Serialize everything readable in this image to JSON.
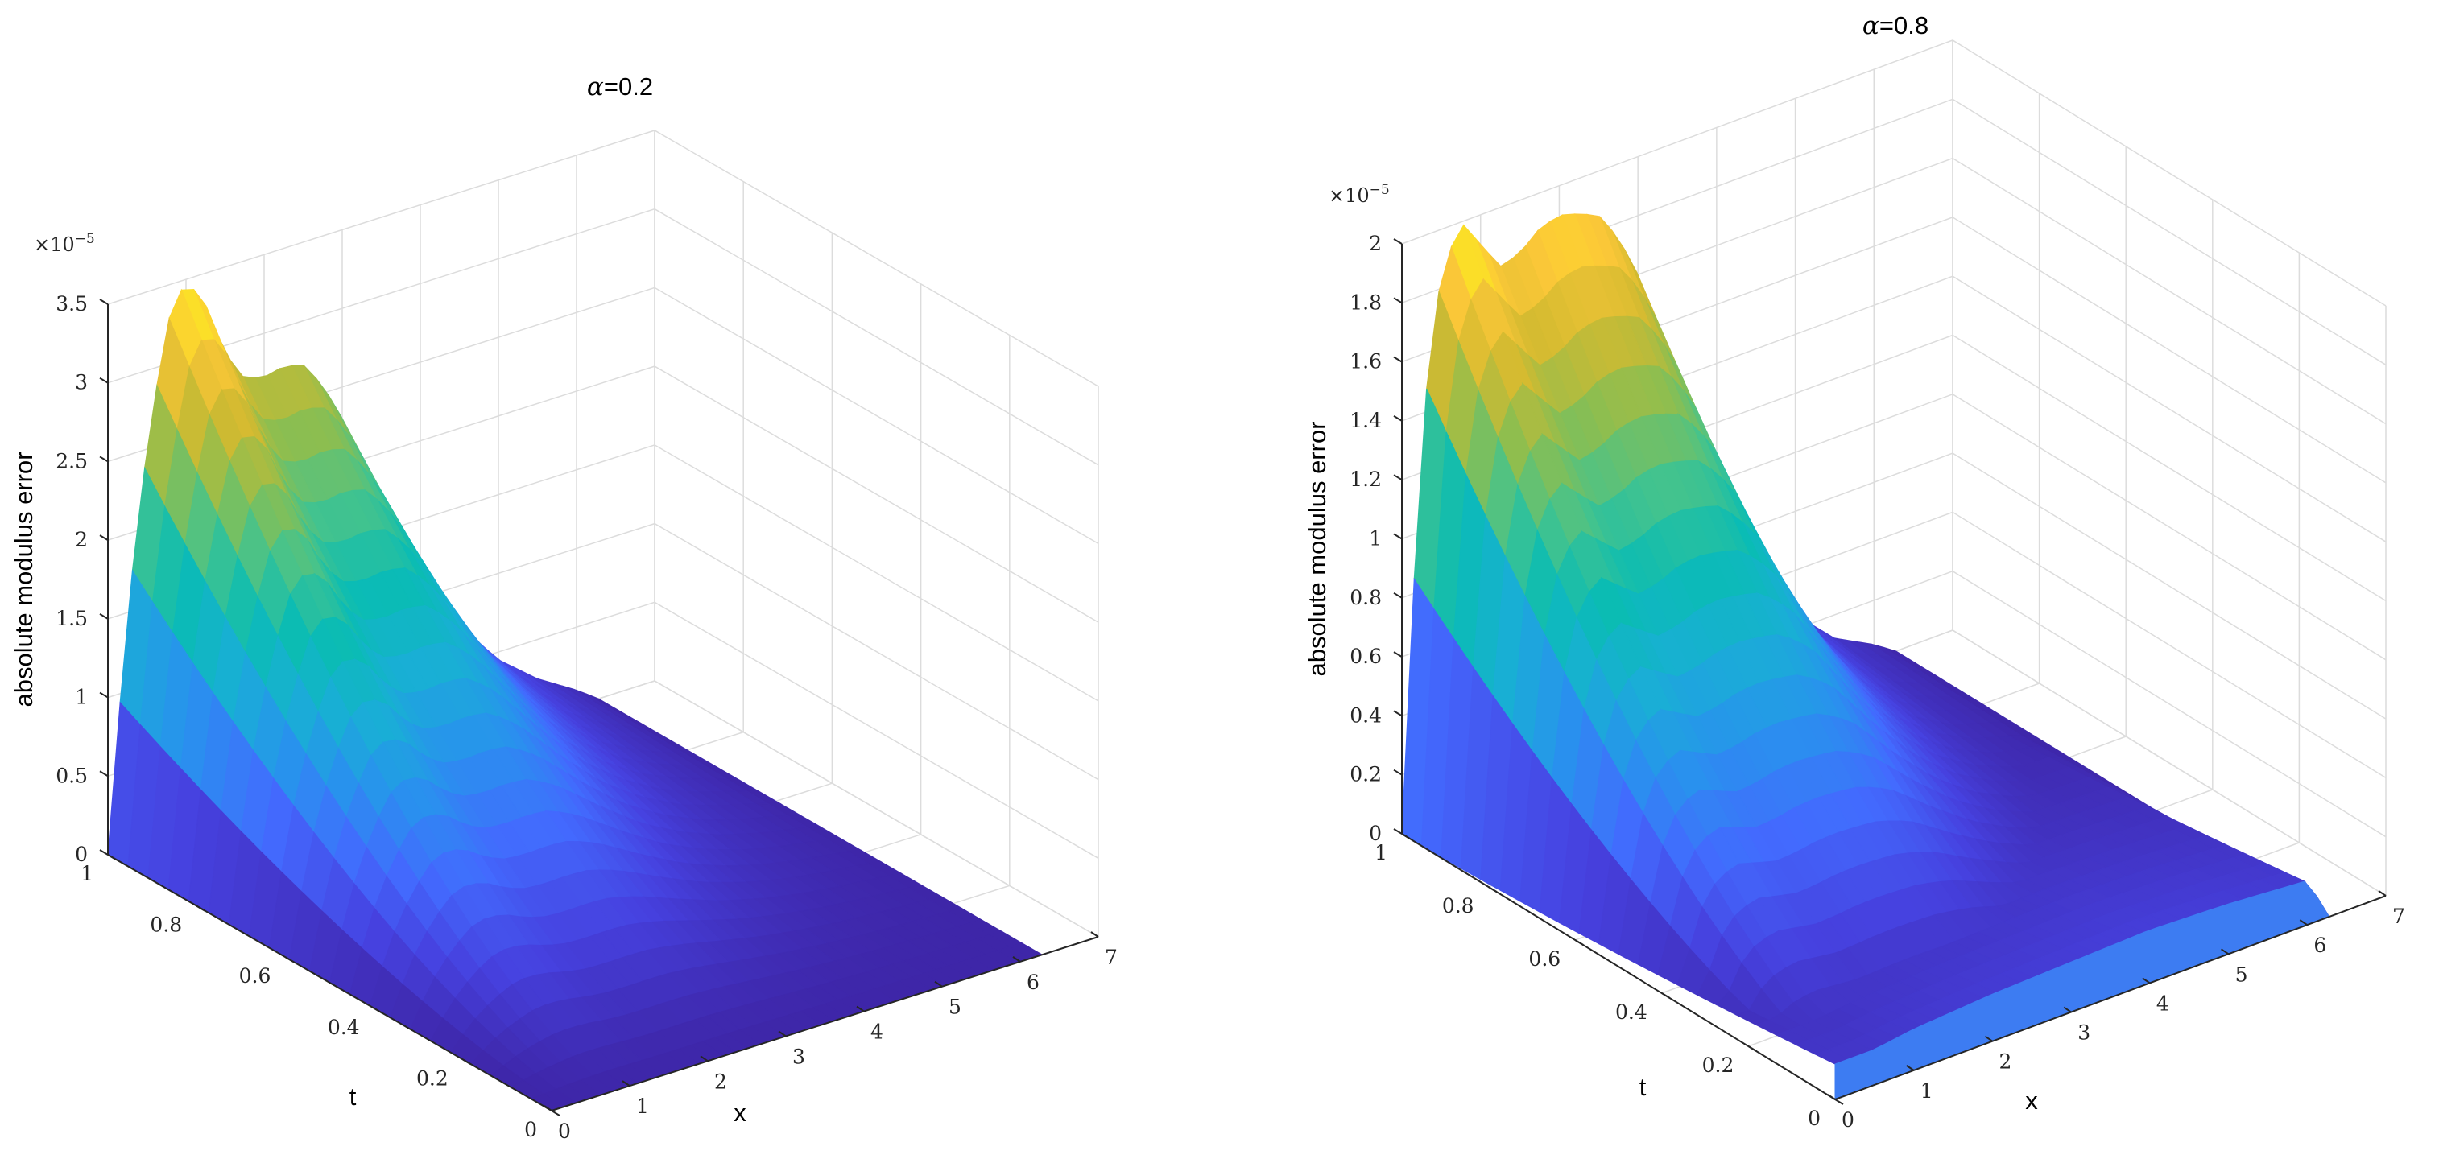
{
  "chart_data": [
    {
      "type": "surface",
      "title": "α=0.2",
      "title_parts": [
        "α",
        "=0.2"
      ],
      "xlabel": "x",
      "ylabel": "t",
      "zlabel": "absolute modulus error",
      "z_multiplier": "×10",
      "z_multiplier_exp": "−5",
      "xlim": [
        0,
        7
      ],
      "ylim": [
        0,
        1
      ],
      "zlim": [
        0,
        3.5
      ],
      "xticks": [
        "0",
        "1",
        "2",
        "3",
        "4",
        "5",
        "6",
        "7"
      ],
      "yticks": [
        "0",
        "0.2",
        "0.4",
        "0.6",
        "0.8",
        "1"
      ],
      "zticks": [
        "0",
        "0.5",
        "1",
        "1.5",
        "2",
        "2.5",
        "3",
        "3.5"
      ],
      "grid": true,
      "colormap": "parula",
      "peak_x": [
        0,
        0.25,
        0.5,
        0.75,
        1.0,
        1.25,
        1.5,
        1.75,
        2.0,
        2.25,
        2.5,
        2.75,
        3.0,
        3.5,
        4.0,
        4.5,
        5.0,
        5.5,
        6.0,
        6.28
      ],
      "peak_z": [
        0,
        1.5,
        2.5,
        3.25,
        3.5,
        3.3,
        2.95,
        2.75,
        2.72,
        2.75,
        2.72,
        2.55,
        2.3,
        1.7,
        1.15,
        0.75,
        0.45,
        0.25,
        0.1,
        0.0
      ]
    },
    {
      "type": "surface",
      "title": "α=0.8",
      "title_parts": [
        "α",
        "=0.8"
      ],
      "xlabel": "x",
      "ylabel": "t",
      "zlabel": "absolute modulus error",
      "z_multiplier": "×10",
      "z_multiplier_exp": "−5",
      "xlim": [
        0,
        7
      ],
      "ylim": [
        0,
        1
      ],
      "zlim": [
        0,
        2
      ],
      "xticks": [
        "0",
        "1",
        "2",
        "3",
        "4",
        "5",
        "6",
        "7"
      ],
      "yticks": [
        "0",
        "0.2",
        "0.4",
        "0.6",
        "0.8",
        "1"
      ],
      "zticks": [
        "0",
        "0.2",
        "0.4",
        "0.6",
        "0.8",
        "1",
        "1.2",
        "1.4",
        "1.6",
        "1.8",
        "2"
      ],
      "grid": true,
      "colormap": "parula",
      "peak_x": [
        0,
        0.25,
        0.5,
        0.75,
        1.0,
        1.25,
        1.5,
        1.75,
        2.0,
        2.25,
        2.5,
        2.75,
        3.0,
        3.5,
        4.0,
        4.5,
        5.0,
        5.5,
        6.0,
        6.28
      ],
      "peak_z": [
        0,
        1.35,
        1.85,
        2.0,
        1.9,
        1.8,
        1.82,
        1.88,
        1.9,
        1.88,
        1.85,
        1.75,
        1.6,
        1.15,
        0.75,
        0.45,
        0.25,
        0.12,
        0.05,
        0.0
      ],
      "edge_t0_x": [
        0,
        0.5,
        1.0,
        2.0,
        3.0,
        4.0,
        5.0,
        6.0,
        6.28
      ],
      "edge_t0_z": [
        0.12,
        0.12,
        0.14,
        0.16,
        0.17,
        0.18,
        0.17,
        0.15,
        0.0
      ]
    }
  ]
}
